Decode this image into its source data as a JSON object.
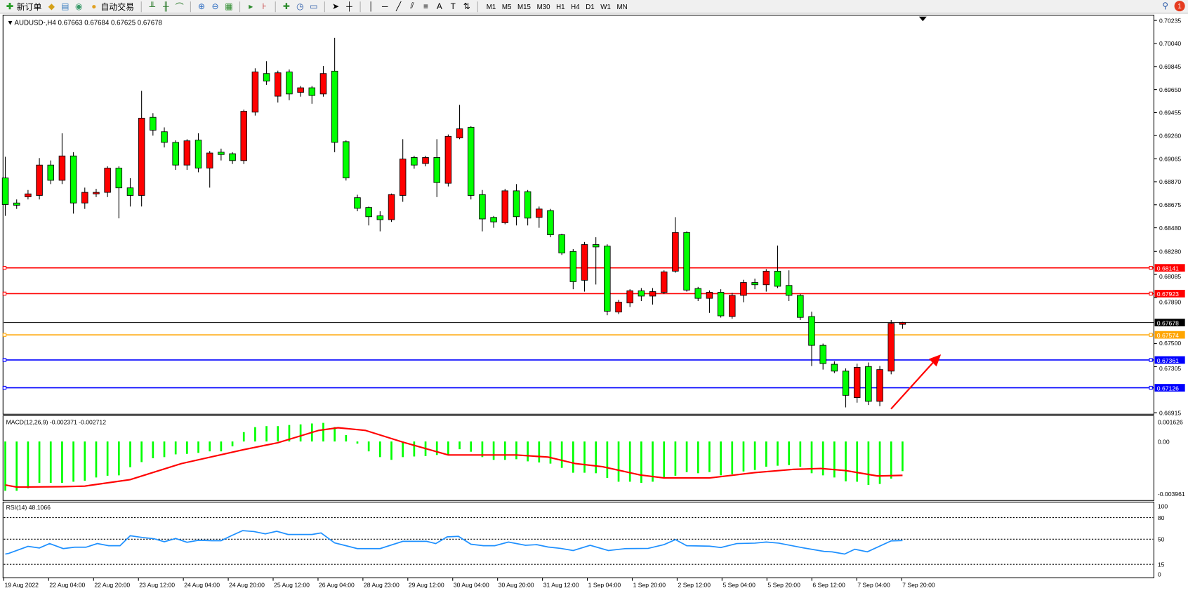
{
  "toolbar": {
    "new_order": "新订单",
    "auto_trading": "自动交易",
    "timeframes": [
      "M1",
      "M5",
      "M15",
      "M30",
      "H1",
      "H4",
      "D1",
      "W1",
      "MN"
    ],
    "notification_count": "1",
    "icons": [
      "new-order-icon",
      "market-watch-icon",
      "data-window-icon",
      "signals-icon",
      "auto-trading-icon",
      "bar-chart-icon",
      "candlestick-icon",
      "line-chart-icon",
      "zoom-in-icon",
      "zoom-out-icon",
      "tile-windows-icon",
      "chart-shift-icon",
      "autoscroll-icon",
      "indicators-icon",
      "periods-icon",
      "templates-icon",
      "cursor-icon",
      "crosshair-icon",
      "vertical-line-icon",
      "horizontal-line-icon",
      "trendline-icon",
      "equidistant-channel-icon",
      "fibonacci-icon",
      "text-icon",
      "arrows-icon",
      "search-icon"
    ]
  },
  "chart": {
    "header": "AUDUSD-,H4  0.67663 0.67684 0.67625 0.67678",
    "bull_color": "#ff0000",
    "bear_color": "#00ff00"
  },
  "chart_data": [
    {
      "type": "candlestick",
      "symbol": "AUDUSD-",
      "timeframe": "H4",
      "ylim": [
        0.66915,
        0.70235
      ],
      "price_ticks": [
        "0.70235",
        "0.70040",
        "0.69845",
        "0.69650",
        "0.69455",
        "0.69260",
        "0.69065",
        "0.68870",
        "0.68675",
        "0.68480",
        "0.68280",
        "0.68085",
        "0.67890",
        "0.67500",
        "0.67305",
        "0.66915"
      ],
      "time_labels": [
        "19 Aug 2022",
        "22 Aug 04:00",
        "22 Aug 20:00",
        "23 Aug 12:00",
        "24 Aug 04:00",
        "24 Aug 20:00",
        "25 Aug 12:00",
        "26 Aug 04:00",
        "28 Aug 23:00",
        "29 Aug 12:00",
        "30 Aug 04:00",
        "30 Aug 20:00",
        "31 Aug 12:00",
        "1 Sep 04:00",
        "1 Sep 20:00",
        "2 Sep 12:00",
        "5 Sep 04:00",
        "5 Sep 20:00",
        "6 Sep 12:00",
        "7 Sep 04:00",
        "7 Sep 20:00"
      ],
      "ohlc": [
        [
          0.68902,
          0.69081,
          0.68581,
          0.68677
        ],
        [
          0.6869,
          0.6872,
          0.6864,
          0.68671
        ],
        [
          0.68742,
          0.688,
          0.6872,
          0.68767
        ],
        [
          0.68754,
          0.6907,
          0.6872,
          0.69011
        ],
        [
          0.69011,
          0.6905,
          0.6885,
          0.68882
        ],
        [
          0.68882,
          0.6928,
          0.6885,
          0.69088
        ],
        [
          0.69088,
          0.6912,
          0.686,
          0.6869
        ],
        [
          0.6869,
          0.6882,
          0.6864,
          0.6878
        ],
        [
          0.68767,
          0.6881,
          0.6874,
          0.6878
        ],
        [
          0.6878,
          0.69,
          0.6874,
          0.68985
        ],
        [
          0.68985,
          0.69,
          0.6856,
          0.68818
        ],
        [
          0.68818,
          0.689,
          0.6866,
          0.68754
        ],
        [
          0.68754,
          0.69639,
          0.6866,
          0.69408
        ],
        [
          0.69415,
          0.6945,
          0.6926,
          0.69306
        ],
        [
          0.69293,
          0.6933,
          0.6916,
          0.69203
        ],
        [
          0.69203,
          0.6922,
          0.6897,
          0.69011
        ],
        [
          0.69011,
          0.6923,
          0.6897,
          0.69216
        ],
        [
          0.69222,
          0.6928,
          0.6895,
          0.68985
        ],
        [
          0.68985,
          0.6913,
          0.6882,
          0.69113
        ],
        [
          0.6912,
          0.6915,
          0.6905,
          0.691
        ],
        [
          0.69107,
          0.6912,
          0.6902,
          0.69049
        ],
        [
          0.69049,
          0.6948,
          0.6902,
          0.69466
        ],
        [
          0.69459,
          0.6983,
          0.6943,
          0.69799
        ],
        [
          0.69786,
          0.6989,
          0.6969,
          0.69722
        ],
        [
          0.69594,
          0.6981,
          0.6954,
          0.69792
        ],
        [
          0.69799,
          0.6982,
          0.6956,
          0.69613
        ],
        [
          0.69626,
          0.6968,
          0.6959,
          0.69665
        ],
        [
          0.69665,
          0.6968,
          0.6953,
          0.696
        ],
        [
          0.69613,
          0.6985,
          0.6959,
          0.69786
        ],
        [
          0.69806,
          0.70088,
          0.6912,
          0.69203
        ],
        [
          0.69209,
          0.6922,
          0.6888,
          0.68902
        ],
        [
          0.68735,
          0.6876,
          0.6862,
          0.68645
        ],
        [
          0.68652,
          0.6866,
          0.685,
          0.68574
        ],
        [
          0.68581,
          0.6862,
          0.6845,
          0.68549
        ],
        [
          0.68549,
          0.6877,
          0.6853,
          0.68761
        ],
        [
          0.68754,
          0.6923,
          0.687,
          0.69062
        ],
        [
          0.69075,
          0.6909,
          0.6898,
          0.69011
        ],
        [
          0.69024,
          0.6909,
          0.69,
          0.69075
        ],
        [
          0.69075,
          0.6923,
          0.6874,
          0.68863
        ],
        [
          0.68857,
          0.6927,
          0.6883,
          0.69254
        ],
        [
          0.69241,
          0.6952,
          0.6923,
          0.69318
        ],
        [
          0.69331,
          0.6934,
          0.6872,
          0.68754
        ],
        [
          0.68761,
          0.688,
          0.6845,
          0.68555
        ],
        [
          0.68568,
          0.6858,
          0.6848,
          0.6853
        ],
        [
          0.68523,
          0.6881,
          0.6851,
          0.68793
        ],
        [
          0.68793,
          0.6885,
          0.685,
          0.68574
        ],
        [
          0.68786,
          0.688,
          0.685,
          0.68562
        ],
        [
          0.68568,
          0.6866,
          0.6848,
          0.68639
        ],
        [
          0.68626,
          0.6864,
          0.684,
          0.68421
        ],
        [
          0.68421,
          0.6843,
          0.6825,
          0.68267
        ],
        [
          0.6828,
          0.683,
          0.6796,
          0.68024
        ],
        [
          0.68036,
          0.6836,
          0.6794,
          0.68338
        ],
        [
          0.68338,
          0.684,
          0.68,
          0.68318
        ],
        [
          0.68325,
          0.6834,
          0.6774,
          0.67774
        ],
        [
          0.67767,
          0.6787,
          0.6775,
          0.67851
        ],
        [
          0.67844,
          0.6796,
          0.6781,
          0.67947
        ],
        [
          0.67947,
          0.6797,
          0.6786,
          0.67902
        ],
        [
          0.67902,
          0.6797,
          0.6783,
          0.6794
        ],
        [
          0.67934,
          0.6812,
          0.6792,
          0.68107
        ],
        [
          0.68113,
          0.6857,
          0.681,
          0.6844
        ],
        [
          0.6844,
          0.6845,
          0.6794,
          0.67953
        ],
        [
          0.67966,
          0.6798,
          0.6786,
          0.67883
        ],
        [
          0.67883,
          0.6795,
          0.6776,
          0.67934
        ],
        [
          0.67934,
          0.6796,
          0.6772,
          0.67735
        ],
        [
          0.67729,
          0.6793,
          0.6771,
          0.67908
        ],
        [
          0.67908,
          0.6804,
          0.6785,
          0.68017
        ],
        [
          0.68017,
          0.6805,
          0.6796,
          0.67998
        ],
        [
          0.67998,
          0.6813,
          0.6794,
          0.68113
        ],
        [
          0.68113,
          0.6833,
          0.6797,
          0.67985
        ],
        [
          0.67992,
          0.6812,
          0.6786,
          0.67908
        ],
        [
          0.67908,
          0.6792,
          0.677,
          0.67722
        ],
        [
          0.67729,
          0.6777,
          0.6731,
          0.67485
        ],
        [
          0.67485,
          0.675,
          0.6728,
          0.67331
        ],
        [
          0.67325,
          0.6735,
          0.6725,
          0.67267
        ],
        [
          0.67267,
          0.6729,
          0.6696,
          0.67062
        ],
        [
          0.67043,
          0.6733,
          0.67,
          0.67299
        ],
        [
          0.67306,
          0.6734,
          0.6698,
          0.67011
        ],
        [
          0.67011,
          0.6731,
          0.6697,
          0.6728
        ],
        [
          0.67267,
          0.677,
          0.6724,
          0.67671
        ],
        [
          0.67663,
          0.67684,
          0.67625,
          0.67678
        ]
      ],
      "levels": [
        {
          "price": "0.68141",
          "color": "#ff0000"
        },
        {
          "price": "0.67923",
          "color": "#ff0000"
        },
        {
          "price": "0.67678",
          "color": "#000000"
        },
        {
          "price": "0.67574",
          "color": "#ffa500"
        },
        {
          "price": "0.67361",
          "color": "#0000ff"
        },
        {
          "price": "0.67126",
          "color": "#0000ff"
        }
      ],
      "annotation_arrow_color": "#ff0000"
    },
    {
      "type": "macd",
      "label": "MACD(12,26,9) -0.002371 -0.002712",
      "ticks": [
        "0.001626",
        "0.00",
        "-0.003961"
      ],
      "histogram": [
        -0.00395,
        -0.00395,
        -0.00374,
        -0.00331,
        -0.00331,
        -0.00331,
        -0.00322,
        -0.00314,
        -0.00288,
        -0.00274,
        -0.00271,
        -0.00206,
        -0.00165,
        -0.00134,
        -0.00125,
        -0.00103,
        -0.00099,
        -0.00091,
        -0.00079,
        -0.00079,
        -0.00039,
        0.00075,
        0.00115,
        0.00123,
        0.00123,
        0.00132,
        0.00137,
        0.00144,
        0.00149,
        0.00115,
        0.00051,
        -0.00017,
        -0.00079,
        -0.00125,
        -0.00147,
        -0.00125,
        -0.0012,
        -0.00117,
        -0.00108,
        -0.00108,
        -0.00062,
        -0.00082,
        -0.00125,
        -0.00147,
        -0.00147,
        -0.00142,
        -0.00159,
        -0.00168,
        -0.00177,
        -0.00211,
        -0.0025,
        -0.0025,
        -0.00254,
        -0.00292,
        -0.00322,
        -0.00322,
        -0.00331,
        -0.00322,
        -0.00288,
        -0.00274,
        -0.00245,
        -0.00254,
        -0.00245,
        -0.00271,
        -0.00262,
        -0.0024,
        -0.00228,
        -0.00202,
        -0.00194,
        -0.00189,
        -0.00202,
        -0.00254,
        -0.00271,
        -0.00288,
        -0.00319,
        -0.00322,
        -0.00348,
        -0.0034,
        -0.00297,
        -0.002371
      ],
      "signal": {
        "bar": [
          0,
          1,
          5,
          7,
          11,
          15.5,
          21,
          24,
          27.6,
          29.3,
          31.7,
          35,
          39,
          45,
          47.8,
          50.2,
          52.6,
          55.9,
          58,
          62,
          66,
          69.4,
          71.8,
          74,
          76.8,
          79
        ],
        "value": [
          -0.00348,
          -0.00365,
          -0.00362,
          -0.00357,
          -0.00305,
          -0.00177,
          -0.00065,
          -0.0001,
          0.00089,
          0.0011,
          0.00089,
          -5e-05,
          -0.00108,
          -0.00108,
          -0.00125,
          -0.00177,
          -0.00202,
          -0.00268,
          -0.00292,
          -0.00292,
          -0.00249,
          -0.00223,
          -0.00216,
          -0.00233,
          -0.00276,
          -0.002712
        ]
      },
      "hist_color": "#00ff00",
      "signal_color": "#ff0000"
    },
    {
      "type": "line",
      "label": "RSI(14) 48.1066",
      "ticks": [
        "100",
        "80",
        "50",
        "15",
        "0"
      ],
      "levels": [
        80,
        50,
        15
      ],
      "ylim": [
        0,
        100
      ],
      "bar": [
        0,
        0.3,
        2,
        3,
        3.9,
        5.1,
        6.1,
        7.1,
        8.1,
        9.1,
        10.1,
        11,
        12.1,
        13.1,
        14,
        15,
        16,
        17,
        18.2,
        19,
        19.9,
        20.9,
        21.9,
        22.9,
        23.9,
        24.9,
        27,
        27.8,
        29,
        30,
        31,
        33,
        35,
        37.1,
        37.9,
        38.9,
        39.9,
        41,
        42.1,
        43.1,
        44.3,
        45.8,
        46.8,
        47.8,
        48.9,
        50,
        51.5,
        53.1,
        54.6,
        56.6,
        58,
        59,
        60,
        62,
        63,
        64.4,
        66,
        67,
        68.1,
        70.1,
        72.1,
        72.8,
        73.9,
        74.8,
        75.9,
        78,
        79
      ],
      "value": [
        29.3,
        30.2,
        40,
        37.8,
        43.9,
        36.9,
        38.8,
        38.8,
        43.9,
        40.9,
        40.9,
        54.8,
        52.3,
        50.6,
        46.4,
        51,
        45.7,
        48.5,
        47.9,
        47.9,
        54.8,
        61.9,
        60.6,
        57.4,
        61,
        56.5,
        56.5,
        58.7,
        44.8,
        40.9,
        36.9,
        36.9,
        47,
        47,
        43.9,
        53.2,
        53.9,
        43,
        40.9,
        40.9,
        46,
        41.5,
        42.4,
        39.1,
        37.2,
        34.2,
        41.5,
        34.2,
        36.9,
        37.2,
        42.4,
        49.4,
        40.9,
        40.3,
        38.4,
        43.9,
        44.5,
        46,
        44.5,
        38.4,
        33,
        32.4,
        29.3,
        36,
        32.4,
        47.6,
        48.1066
      ],
      "line_color": "#1e90ff"
    }
  ]
}
